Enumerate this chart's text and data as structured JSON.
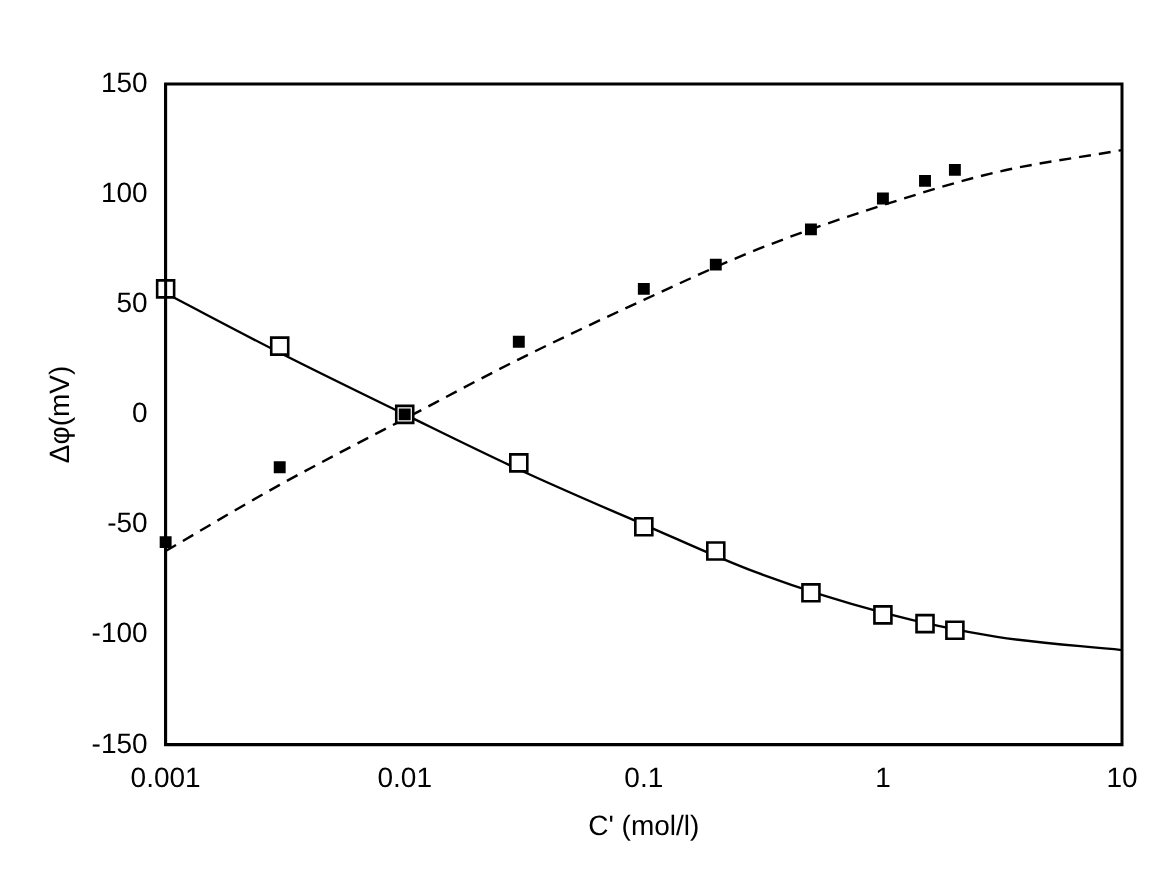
{
  "chart_data": {
    "type": "scatter",
    "xlabel": "C' (mol/l)",
    "ylabel": "Δφ(mV)",
    "log": "x",
    "xlim": [
      0.001,
      10
    ],
    "xticks": [
      0.001,
      0.01,
      0.1,
      1,
      10
    ],
    "ylim": [
      -150,
      150
    ],
    "yticks": [
      -150,
      -100,
      -50,
      0,
      50,
      100,
      150
    ],
    "grid": false,
    "legend": false,
    "series": [
      {
        "marker": "square",
        "color": "#000000",
        "x": [
          0.001,
          0.003,
          0.01,
          0.03,
          0.1,
          0.2,
          0.5,
          1,
          1.5,
          2
        ],
        "values": [
          57,
          31,
          0,
          -22,
          -51,
          -62,
          -81,
          -91,
          -95,
          -98
        ]
      },
      {
        "marker": "square",
        "color": "#000000",
        "x": [
          0.001,
          0.003,
          0.01,
          0.03,
          0.1,
          0.2,
          0.5,
          1,
          1.5,
          2
        ],
        "values": [
          -58,
          -24,
          0,
          33,
          57,
          68,
          84,
          98,
          106,
          111
        ]
      },
      {
        "type": "line",
        "marker": "none",
        "line_style": "solid",
        "color": "#000000",
        "x": [
          0.001,
          0.003,
          0.01,
          0.03,
          0.1,
          0.3,
          1,
          3,
          10
        ],
        "values": [
          55,
          28,
          0,
          -25,
          -50,
          -72,
          -90,
          -101,
          -107
        ]
      },
      {
        "type": "line",
        "marker": "none",
        "line_style": "dashed",
        "color": "#000000",
        "x": [
          0.001,
          0.003,
          0.01,
          0.03,
          0.1,
          0.3,
          1,
          3,
          10
        ],
        "values": [
          -62,
          -32,
          -2,
          25,
          52,
          75,
          95,
          110,
          120
        ]
      }
    ]
  }
}
